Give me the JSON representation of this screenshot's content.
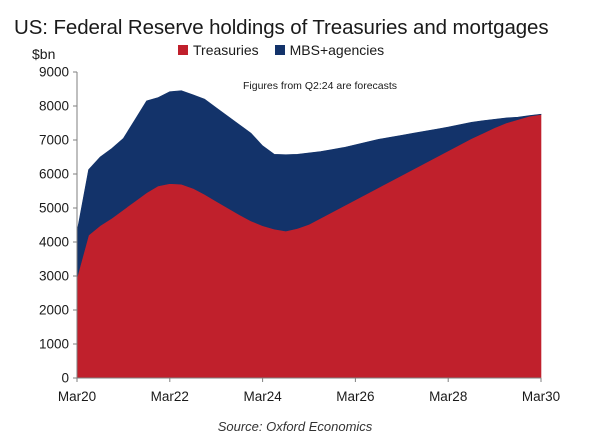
{
  "chart_data": {
    "type": "area",
    "stacked": true,
    "title": "US: Federal Reserve holdings of Treasuries and mortgages",
    "ylabel": "$bn",
    "annotation": "Figures from Q2:24 are forecasts",
    "source": "Source: Oxford Economics",
    "legend_position": "top",
    "grid": false,
    "ylim": [
      0,
      9000
    ],
    "yticks": [
      0,
      1000,
      2000,
      3000,
      4000,
      5000,
      6000,
      7000,
      8000,
      9000
    ],
    "xticks": [
      "Mar20",
      "Mar22",
      "Mar24",
      "Mar26",
      "Mar28",
      "Mar30"
    ],
    "x": [
      "Q1:20",
      "Q2:20",
      "Q3:20",
      "Q4:20",
      "Q1:21",
      "Q2:21",
      "Q3:21",
      "Q4:21",
      "Q1:22",
      "Q2:22",
      "Q3:22",
      "Q4:22",
      "Q1:23",
      "Q2:23",
      "Q3:23",
      "Q4:23",
      "Q1:24",
      "Q2:24",
      "Q3:24",
      "Q4:24",
      "Q1:25",
      "Q2:25",
      "Q3:25",
      "Q4:25",
      "Q1:26",
      "Q2:26",
      "Q3:26",
      "Q4:26",
      "Q1:27",
      "Q2:27",
      "Q3:27",
      "Q4:27",
      "Q1:28",
      "Q2:28",
      "Q3:28",
      "Q4:28",
      "Q1:29",
      "Q2:29",
      "Q3:29",
      "Q4:29",
      "Q1:30"
    ],
    "series": [
      {
        "name": "Treasuries",
        "color": "#c0202c",
        "values": [
          2950,
          4200,
          4480,
          4700,
          4950,
          5200,
          5450,
          5650,
          5720,
          5700,
          5580,
          5400,
          5200,
          5000,
          4800,
          4620,
          4480,
          4380,
          4320,
          4400,
          4520,
          4700,
          4880,
          5060,
          5240,
          5420,
          5600,
          5780,
          5960,
          6140,
          6320,
          6500,
          6680,
          6860,
          7040,
          7200,
          7360,
          7500,
          7600,
          7700,
          7750
        ]
      },
      {
        "name": "MBS+agencies",
        "color": "#13336a",
        "values": [
          1350,
          1930,
          2020,
          2050,
          2100,
          2400,
          2700,
          2600,
          2700,
          2750,
          2750,
          2800,
          2750,
          2700,
          2650,
          2580,
          2350,
          2200,
          2250,
          2180,
          2100,
          1960,
          1840,
          1720,
          1620,
          1520,
          1420,
          1300,
          1180,
          1060,
          940,
          820,
          700,
          590,
          480,
          370,
          250,
          150,
          70,
          20,
          10
        ]
      }
    ]
  }
}
